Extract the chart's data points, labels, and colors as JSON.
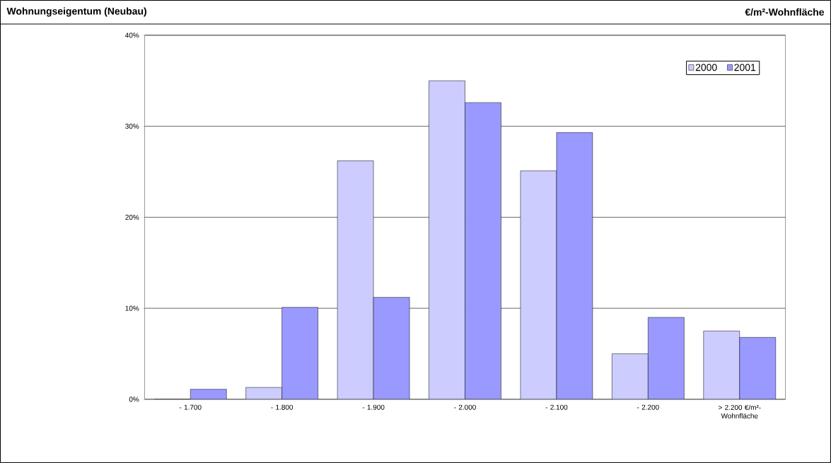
{
  "chart_data": {
    "type": "bar",
    "title": "Wohnungseigentum (Neubau)",
    "subtitle": "€/m²-Wohnfläche",
    "categories": [
      "- 1.700",
      "- 1.800",
      "- 1.900",
      "- 2.000",
      "- 2.100",
      "- 2.200",
      "> 2.200 €/m²-Wohnfläche"
    ],
    "series": [
      {
        "name": "2000",
        "color": "#ccccff",
        "values": [
          0,
          1.3,
          26.2,
          35.0,
          25.1,
          5.0,
          7.5
        ]
      },
      {
        "name": "2001",
        "color": "#9999ff",
        "values": [
          1.1,
          10.1,
          11.2,
          32.6,
          29.3,
          9.0,
          6.8
        ]
      }
    ],
    "ylim": [
      0,
      40
    ],
    "yticks": [
      {
        "value": 0,
        "label": "0%"
      },
      {
        "value": 10,
        "label": "10%"
      },
      {
        "value": 20,
        "label": "20%"
      },
      {
        "value": 30,
        "label": "30%"
      },
      {
        "value": 40,
        "label": "40%"
      }
    ],
    "grid": "y",
    "legend": "top right"
  }
}
